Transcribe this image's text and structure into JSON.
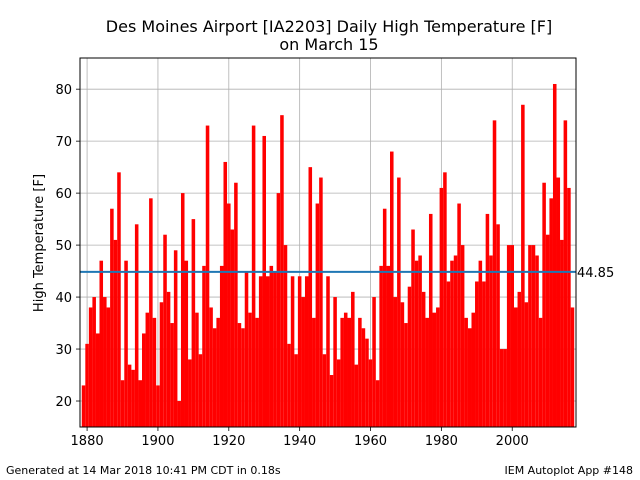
{
  "chart_data": {
    "type": "bar",
    "title": "Des Moines Airport [IA2203] Daily High Temperature [F]",
    "subtitle": "on March 15",
    "xlabel": "",
    "ylabel": "High Temperature [F]",
    "xlim": [
      1878,
      2018
    ],
    "ylim": [
      15,
      86
    ],
    "xticks": [
      1880,
      1900,
      1920,
      1940,
      1960,
      1980,
      2000
    ],
    "yticks": [
      20,
      30,
      40,
      50,
      60,
      70,
      80
    ],
    "grid": true,
    "bar_color": "#ff0000",
    "x": [
      1879,
      1880,
      1881,
      1882,
      1883,
      1884,
      1885,
      1886,
      1887,
      1888,
      1889,
      1890,
      1891,
      1892,
      1893,
      1894,
      1895,
      1896,
      1897,
      1898,
      1899,
      1900,
      1901,
      1902,
      1903,
      1904,
      1905,
      1906,
      1907,
      1908,
      1909,
      1910,
      1911,
      1912,
      1913,
      1914,
      1915,
      1916,
      1917,
      1918,
      1919,
      1920,
      1921,
      1922,
      1923,
      1924,
      1925,
      1926,
      1927,
      1928,
      1929,
      1930,
      1931,
      1932,
      1933,
      1934,
      1935,
      1936,
      1937,
      1938,
      1939,
      1940,
      1941,
      1942,
      1943,
      1944,
      1945,
      1946,
      1947,
      1948,
      1949,
      1950,
      1951,
      1952,
      1953,
      1954,
      1955,
      1956,
      1957,
      1958,
      1959,
      1960,
      1961,
      1962,
      1963,
      1964,
      1965,
      1966,
      1967,
      1968,
      1969,
      1970,
      1971,
      1972,
      1973,
      1974,
      1975,
      1976,
      1977,
      1978,
      1979,
      1980,
      1981,
      1982,
      1983,
      1984,
      1985,
      1986,
      1987,
      1988,
      1989,
      1990,
      1991,
      1992,
      1993,
      1994,
      1995,
      1996,
      1997,
      1998,
      1999,
      2000,
      2001,
      2002,
      2003,
      2004,
      2005,
      2006,
      2007,
      2008,
      2009,
      2010,
      2011,
      2012,
      2013,
      2014,
      2015,
      2016,
      2017
    ],
    "values": [
      23,
      31,
      38,
      40,
      33,
      47,
      40,
      38,
      57,
      51,
      64,
      24,
      47,
      27,
      26,
      54,
      24,
      33,
      37,
      59,
      36,
      23,
      39,
      52,
      41,
      35,
      49,
      20,
      60,
      47,
      28,
      55,
      37,
      29,
      46,
      73,
      38,
      34,
      36,
      46,
      66,
      58,
      53,
      62,
      35,
      34,
      45,
      37,
      73,
      36,
      44,
      71,
      44,
      46,
      45,
      60,
      75,
      50,
      31,
      44,
      29,
      44,
      40,
      44,
      65,
      36,
      58,
      63,
      29,
      44,
      25,
      40,
      28,
      36,
      37,
      36,
      41,
      27,
      36,
      34,
      32,
      28,
      40,
      24,
      46,
      57,
      46,
      68,
      40,
      63,
      39,
      35,
      42,
      53,
      47,
      48,
      41,
      36,
      56,
      37,
      38,
      61,
      64,
      43,
      47,
      48,
      58,
      50,
      36,
      34,
      37,
      43,
      47,
      43,
      56,
      48,
      74,
      54,
      30,
      30,
      50,
      50,
      38,
      41,
      77,
      39,
      50,
      50,
      48,
      36,
      62,
      52,
      59,
      81,
      63,
      51,
      74,
      61,
      38
    ],
    "average": 44.85,
    "average_label": "44.85",
    "average_color": "#1f77b4"
  },
  "footer": {
    "left": "Generated at 14 Mar 2018 10:41 PM CDT in 0.18s",
    "right": "IEM Autoplot App #148"
  }
}
